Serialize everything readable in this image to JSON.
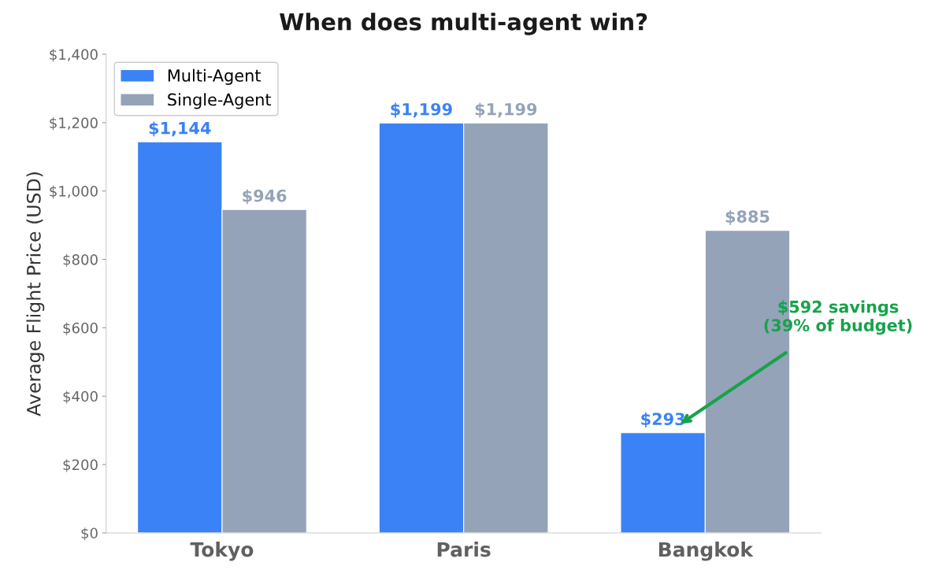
{
  "chart_data": {
    "type": "bar",
    "title": "When does multi-agent win?",
    "ylabel": "Average Flight Price (USD)",
    "categories": [
      "Tokyo",
      "Paris",
      "Bangkok"
    ],
    "series": [
      {
        "name": "Multi-Agent",
        "color": "#3b82f6",
        "values": [
          1144,
          1199,
          293
        ]
      },
      {
        "name": "Single-Agent",
        "color": "#94a3b8",
        "values": [
          946,
          1199,
          885
        ]
      }
    ],
    "ylim": [
      0,
      1400
    ],
    "yticks": [
      {
        "value": 0,
        "label": "$0"
      },
      {
        "value": 200,
        "label": "$200"
      },
      {
        "value": 400,
        "label": "$400"
      },
      {
        "value": 600,
        "label": "$600"
      },
      {
        "value": 800,
        "label": "$800"
      },
      {
        "value": 1000,
        "label": "$1,000"
      },
      {
        "value": 1200,
        "label": "$1,200"
      },
      {
        "value": 1400,
        "label": "$1,400"
      }
    ],
    "value_labels": [
      [
        "$1,144",
        "$1,199",
        "$293"
      ],
      [
        "$946",
        "$1,199",
        "$885"
      ]
    ],
    "annotations": [
      "$592 savings\n(39% of budget)"
    ],
    "legend": "top left",
    "grid": false
  }
}
